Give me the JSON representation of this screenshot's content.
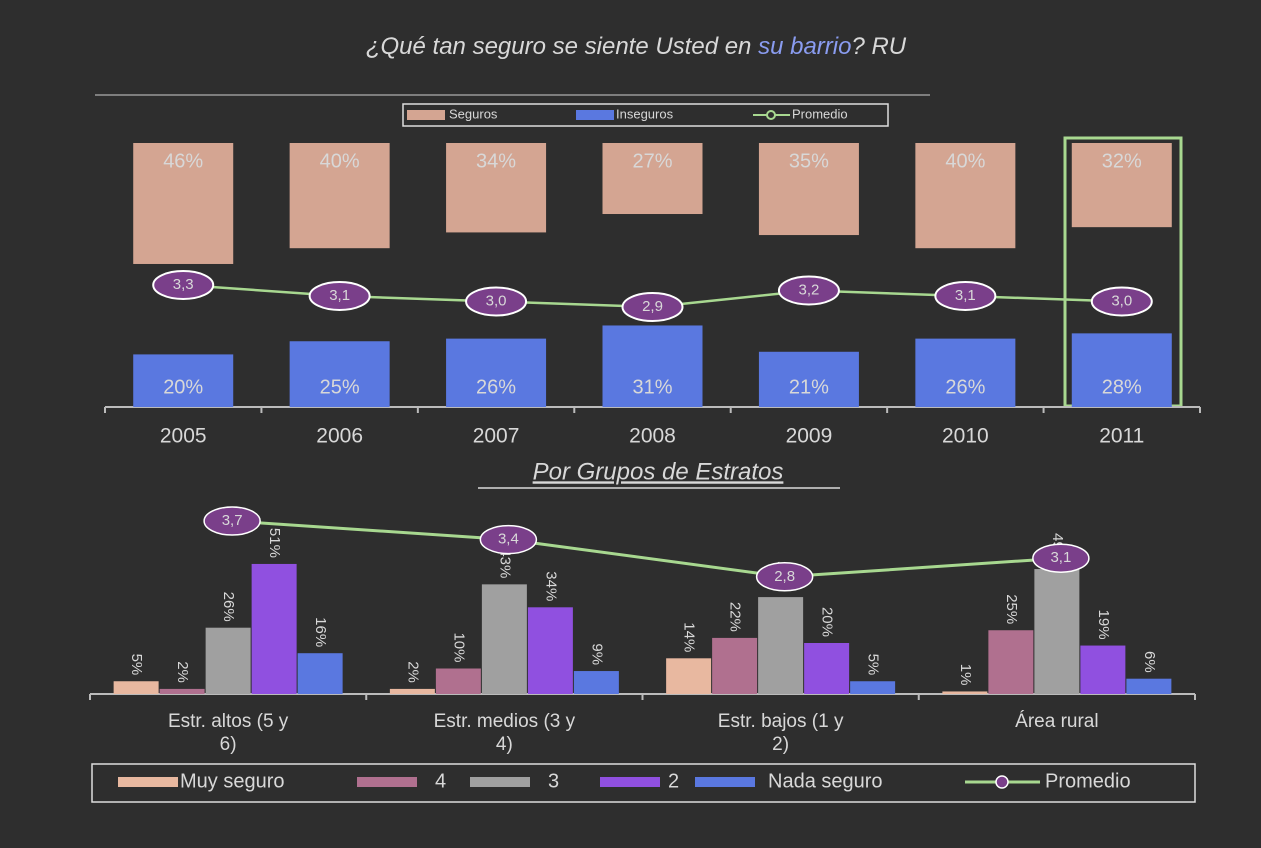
{
  "chart_data": [
    {
      "type": "bar",
      "title": [
        "¿Qué tan seguro se siente Usted en ",
        "su barrio",
        "? RU"
      ],
      "categories": [
        "2005",
        "2006",
        "2007",
        "2008",
        "2009",
        "2010",
        "2011"
      ],
      "series": [
        {
          "name": "Seguros",
          "color": "#d4a592",
          "values": [
            46,
            40,
            34,
            27,
            35,
            40,
            32
          ],
          "value_labels": [
            "46%",
            "40%",
            "34%",
            "27%",
            "35%",
            "40%",
            "32%"
          ]
        },
        {
          "name": "Inseguros",
          "color": "#5a78e0",
          "values": [
            20,
            25,
            26,
            31,
            21,
            26,
            28
          ],
          "value_labels": [
            "20%",
            "25%",
            "26%",
            "31%",
            "21%",
            "26%",
            "28%"
          ]
        },
        {
          "name": "Promedio",
          "type": "line",
          "color": "#a8d890",
          "values": [
            3.3,
            3.1,
            3.0,
            2.9,
            3.2,
            3.1,
            3.0
          ],
          "value_labels": [
            "3,3",
            "3,1",
            "3,0",
            "2,9",
            "3,2",
            "3,1",
            "3,0"
          ]
        }
      ]
    },
    {
      "type": "bar",
      "title": "Por Grupos de Estratos",
      "categories": [
        "Estr. altos (5 y 6)",
        "Estr. medios (3 y 4)",
        "Estr. bajos (1 y 2)",
        "Área rural"
      ],
      "series": [
        {
          "name": "Muy seguro",
          "color": "#e8b8a0",
          "values": [
            5,
            2,
            14,
            1
          ],
          "value_labels": [
            "5%",
            "2%",
            "14%",
            "1%"
          ]
        },
        {
          "name": "4",
          "color": "#b0708f",
          "values": [
            2,
            10,
            22,
            25
          ],
          "value_labels": [
            "2%",
            "10%",
            "22%",
            "25%"
          ]
        },
        {
          "name": "3",
          "color": "#a0a0a0",
          "values": [
            26,
            43,
            38,
            49
          ],
          "value_labels": [
            "26%",
            "43%",
            "38%",
            "49%"
          ]
        },
        {
          "name": "2",
          "color": "#9050e0",
          "values": [
            51,
            34,
            20,
            19
          ],
          "value_labels": [
            "51%",
            "34%",
            "20%",
            "19%"
          ]
        },
        {
          "name": "Nada seguro",
          "color": "#5a78e0",
          "values": [
            16,
            9,
            5,
            6
          ],
          "value_labels": [
            "16%",
            "9%",
            "5%",
            "6%"
          ]
        },
        {
          "name": "Promedio",
          "type": "line",
          "color": "#a8d890",
          "values": [
            3.7,
            3.4,
            2.8,
            3.1
          ],
          "value_labels": [
            "3,7",
            "3,4",
            "2,8",
            "3,1"
          ]
        }
      ]
    }
  ]
}
